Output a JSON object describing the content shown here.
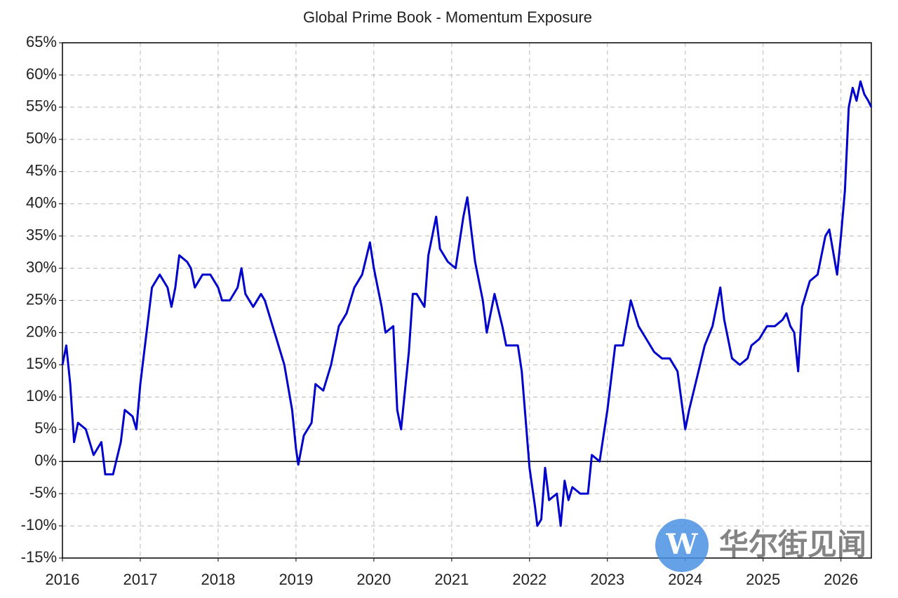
{
  "chart_data": {
    "type": "line",
    "title": "Global Prime Book - Momentum Exposure",
    "x": [
      2016.0,
      2016.05,
      2016.1,
      2016.15,
      2016.2,
      2016.3,
      2016.4,
      2016.5,
      2016.55,
      2016.65,
      2016.75,
      2016.8,
      2016.9,
      2016.95,
      2017.0,
      2017.1,
      2017.15,
      2017.25,
      2017.35,
      2017.4,
      2017.45,
      2017.5,
      2017.6,
      2017.65,
      2017.7,
      2017.8,
      2017.9,
      2018.0,
      2018.05,
      2018.15,
      2018.25,
      2018.3,
      2018.35,
      2018.45,
      2018.55,
      2018.6,
      2018.7,
      2018.75,
      2018.85,
      2018.95,
      2019.0,
      2019.03,
      2019.1,
      2019.2,
      2019.25,
      2019.35,
      2019.45,
      2019.55,
      2019.65,
      2019.75,
      2019.85,
      2019.95,
      2020.0,
      2020.05,
      2020.1,
      2020.15,
      2020.25,
      2020.3,
      2020.35,
      2020.45,
      2020.5,
      2020.55,
      2020.65,
      2020.7,
      2020.8,
      2020.85,
      2020.95,
      2021.05,
      2021.15,
      2021.2,
      2021.25,
      2021.3,
      2021.4,
      2021.45,
      2021.55,
      2021.65,
      2021.7,
      2021.85,
      2021.9,
      2022.0,
      2022.07,
      2022.1,
      2022.15,
      2022.2,
      2022.25,
      2022.35,
      2022.4,
      2022.45,
      2022.5,
      2022.55,
      2022.65,
      2022.75,
      2022.8,
      2022.9,
      2023.0,
      2023.1,
      2023.2,
      2023.3,
      2023.4,
      2023.5,
      2023.6,
      2023.7,
      2023.8,
      2023.9,
      2024.0,
      2024.05,
      2024.15,
      2024.25,
      2024.35,
      2024.45,
      2024.5,
      2024.6,
      2024.7,
      2024.8,
      2024.85,
      2024.95,
      2025.05,
      2025.15,
      2025.25,
      2025.3,
      2025.35,
      2025.4,
      2025.45,
      2025.5,
      2025.6,
      2025.7,
      2025.8,
      2025.85,
      2025.95,
      2026.0,
      2026.05,
      2026.1,
      2026.15,
      2026.2,
      2026.25,
      2026.3,
      2026.35,
      2026.39
    ],
    "values": [
      15,
      18,
      12,
      3,
      6,
      5,
      1,
      3,
      -2,
      -2,
      3,
      8,
      7,
      5,
      12,
      22,
      27,
      29,
      27,
      24,
      27,
      32,
      31,
      30,
      27,
      29,
      29,
      27,
      25,
      25,
      27,
      30,
      26,
      24,
      26,
      25,
      21,
      19,
      15,
      8,
      2,
      -0.5,
      4,
      6,
      12,
      11,
      15,
      21,
      23,
      27,
      29,
      34,
      30,
      27,
      24,
      20,
      21,
      8,
      5,
      17,
      26,
      26,
      24,
      32,
      38,
      33,
      31,
      30,
      38,
      41,
      36,
      31,
      25,
      20,
      26,
      21,
      18,
      18,
      14,
      -1,
      -7,
      -10,
      -9,
      -1,
      -6,
      -5,
      -10,
      -3,
      -6,
      -4,
      -5,
      -5,
      1,
      0,
      8,
      18,
      18,
      25,
      21,
      19,
      17,
      16,
      16,
      14,
      5,
      8,
      13,
      18,
      21,
      27,
      22,
      16,
      15,
      16,
      18,
      19,
      21,
      21,
      22,
      23,
      21,
      20,
      14,
      24,
      28,
      29,
      35,
      36,
      29,
      35,
      42,
      55,
      58,
      56,
      59,
      57,
      56,
      55
    ],
    "color": "#0000cc",
    "xlim": [
      2016,
      2026.39
    ],
    "xticks": [
      2016,
      2017,
      2018,
      2019,
      2020,
      2021,
      2022,
      2023,
      2024,
      2025,
      2026
    ],
    "ylim": [
      -15,
      65
    ],
    "yticks": [
      {
        "value": 65,
        "label": "65%"
      },
      {
        "value": 60,
        "label": "60%"
      },
      {
        "value": 55,
        "label": "55%"
      },
      {
        "value": 50,
        "label": "50%"
      },
      {
        "value": 45,
        "label": "45%"
      },
      {
        "value": 40,
        "label": "40%"
      },
      {
        "value": 35,
        "label": "35%"
      },
      {
        "value": 30,
        "label": "30%"
      },
      {
        "value": 25,
        "label": "25%"
      },
      {
        "value": 20,
        "label": "20%"
      },
      {
        "value": 15,
        "label": "15%"
      },
      {
        "value": 10,
        "label": "10%"
      },
      {
        "value": 5,
        "label": "5%"
      },
      {
        "value": 0,
        "label": "0%"
      },
      {
        "value": -5,
        "label": "-5%"
      },
      {
        "value": -10,
        "label": "-10%"
      },
      {
        "value": -15,
        "label": "-15%"
      }
    ],
    "grid": true,
    "watermark": "华尔街见闻",
    "watermark_logo": "W"
  }
}
